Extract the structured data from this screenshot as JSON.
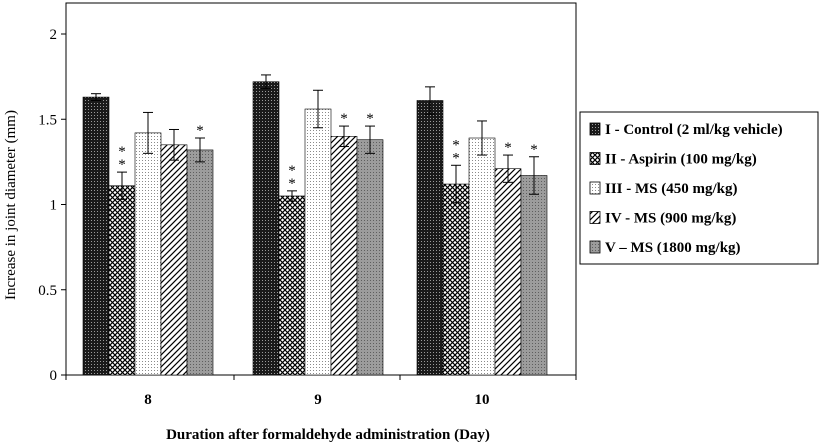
{
  "chart_data": {
    "type": "bar",
    "categories": [
      "8",
      "9",
      "10"
    ],
    "series": [
      {
        "name": "I - Control (2 ml/kg vehicle)",
        "values": [
          1.63,
          1.72,
          1.61
        ],
        "errors": [
          0.02,
          0.04,
          0.08
        ],
        "significance": [
          "",
          "",
          ""
        ],
        "pattern": "dense-dots"
      },
      {
        "name": "II - Aspirin (100 mg/kg)",
        "values": [
          1.11,
          1.05,
          1.12
        ],
        "errors": [
          0.08,
          0.03,
          0.11
        ],
        "significance": [
          "**",
          "**",
          "**"
        ],
        "pattern": "crosshatch"
      },
      {
        "name": "III - MS (450 mg/kg)",
        "values": [
          1.42,
          1.56,
          1.39
        ],
        "errors": [
          0.12,
          0.11,
          0.1
        ],
        "significance": [
          "",
          "",
          ""
        ],
        "pattern": "light-dots"
      },
      {
        "name": "IV - MS (900 mg/kg)",
        "values": [
          1.35,
          1.4,
          1.21
        ],
        "errors": [
          0.09,
          0.06,
          0.08
        ],
        "significance": [
          "",
          "*",
          "*"
        ],
        "pattern": "diagonal"
      },
      {
        "name": "V – MS (1800 mg/kg)",
        "values": [
          1.32,
          1.38,
          1.17
        ],
        "errors": [
          0.07,
          0.08,
          0.11
        ],
        "significance": [
          "*",
          "*",
          "*"
        ],
        "pattern": "grey-dots"
      }
    ],
    "xlabel": "Duration after formaldehyde administration (Day)",
    "ylabel": "Increase in joint diameter (mm)",
    "ylim": [
      0,
      2
    ],
    "yticks": [
      "0",
      "0.5",
      "1",
      "1.5",
      "2"
    ],
    "grid": false,
    "legend_position": "right"
  }
}
